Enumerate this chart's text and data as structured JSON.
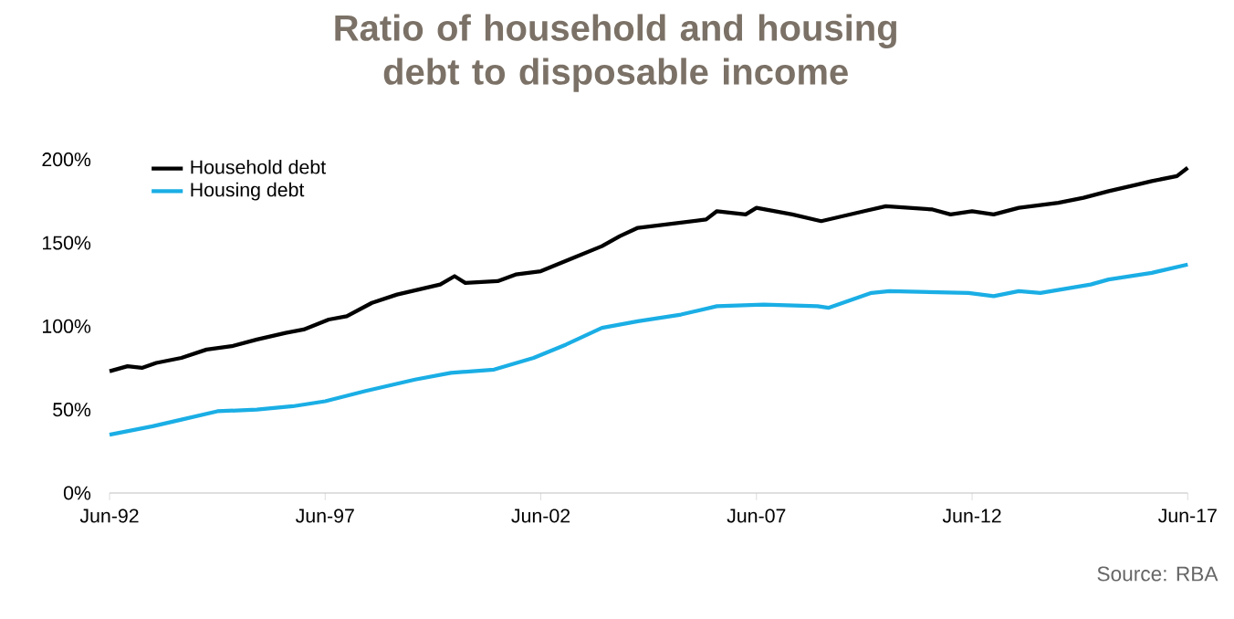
{
  "chart_data": {
    "type": "line",
    "title": "Ratio of household and housing debt to disposable income",
    "x": [
      "1992-06",
      "1992-11",
      "1993-03",
      "1993-07",
      "1994-02",
      "1994-09",
      "1995-04",
      "1995-11",
      "1996-07",
      "1996-12",
      "1997-07",
      "1997-12",
      "1998-07",
      "1999-02",
      "1999-08",
      "2000-02",
      "2000-06",
      "2000-09",
      "2001-06",
      "2001-11",
      "2002-06",
      "2003-03",
      "2003-11",
      "2004-04",
      "2004-09",
      "2006-04",
      "2006-07",
      "2007-03",
      "2007-06",
      "2008-04",
      "2008-12",
      "2009-12",
      "2010-06",
      "2011-07",
      "2011-12",
      "2012-06",
      "2012-12",
      "2013-07",
      "2014-06",
      "2015-01",
      "2015-08",
      "2016-04",
      "2016-08",
      "2017-03",
      "2017-06"
    ],
    "series": [
      {
        "name": "Household debt",
        "color": "#000000",
        "values": [
          73,
          76,
          75,
          78,
          81,
          86,
          88,
          92,
          96,
          98,
          104,
          106,
          114,
          119,
          122,
          125,
          130,
          126,
          127,
          131,
          133,
          141,
          148,
          154,
          159,
          164,
          169,
          167,
          171,
          167,
          163,
          169,
          172,
          170,
          167,
          169,
          167,
          171,
          174,
          177,
          181,
          185,
          187,
          190,
          195
        ]
      },
      {
        "name": "Housing debt",
        "color": "#1aaee5",
        "x": [
          "1992-06",
          "1993-06",
          "1994-02",
          "1994-12",
          "1995-11",
          "1996-09",
          "1997-06",
          "1998-05",
          "1999-07",
          "2000-05",
          "2001-05",
          "2002-04",
          "2003-01",
          "2003-11",
          "2004-09",
          "2005-09",
          "2006-07",
          "2007-08",
          "2008-11",
          "2009-02",
          "2010-02",
          "2010-07",
          "2012-05",
          "2012-12",
          "2013-07",
          "2014-01",
          "2015-03",
          "2015-08",
          "2016-08",
          "2017-06"
        ],
        "values": [
          35,
          40,
          44,
          49,
          50,
          52,
          55,
          61,
          68,
          72,
          74,
          81,
          89,
          99,
          103,
          107,
          112,
          113,
          112,
          111,
          120,
          121,
          120,
          118,
          121,
          120,
          125,
          128,
          132,
          137
        ]
      }
    ],
    "xlim": [
      "1992-06",
      "2017-06"
    ],
    "xticks": [
      {
        "value": "1992-06",
        "label": "Jun-92"
      },
      {
        "value": "1997-06",
        "label": "Jun-97"
      },
      {
        "value": "2002-06",
        "label": "Jun-02"
      },
      {
        "value": "2007-06",
        "label": "Jun-07"
      },
      {
        "value": "2012-06",
        "label": "Jun-12"
      },
      {
        "value": "2017-06",
        "label": "Jun-17"
      }
    ],
    "ylim": [
      0,
      200
    ],
    "yticks": [
      {
        "value": 0,
        "label": "0%"
      },
      {
        "value": 50,
        "label": "50%"
      },
      {
        "value": 100,
        "label": "100%"
      },
      {
        "value": 150,
        "label": "150%"
      },
      {
        "value": 200,
        "label": "200%"
      }
    ],
    "legend": "top left",
    "grid": false,
    "marker": "none",
    "line_style": "solid",
    "annotations": [
      "Source: RBA"
    ]
  }
}
